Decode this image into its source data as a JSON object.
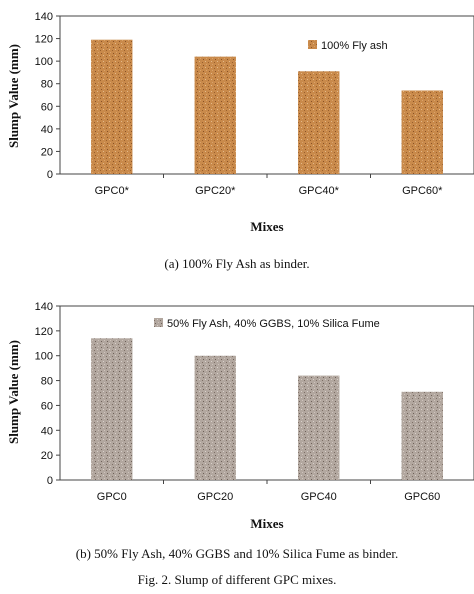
{
  "chart_data": [
    {
      "type": "bar",
      "categories": [
        "GPC0*",
        "GPC20*",
        "GPC40*",
        "GPC60*"
      ],
      "series": [
        {
          "name": "100% Fly ash",
          "values": [
            119,
            104,
            91,
            74
          ],
          "color": "#c98a4b"
        }
      ],
      "xlabel": "Mixes",
      "ylabel": "Slump Value (mm)",
      "ylim": [
        0,
        140
      ],
      "yticks": [
        0,
        20,
        40,
        60,
        80,
        100,
        120,
        140
      ],
      "legend": "top-right",
      "grid": false,
      "caption": "(a) 100% Fly Ash as binder."
    },
    {
      "type": "bar",
      "categories": [
        "GPC0",
        "GPC20",
        "GPC40",
        "GPC60"
      ],
      "series": [
        {
          "name": "50% Fly Ash, 40% GGBS, 10% Silica Fume",
          "values": [
            114,
            100,
            84,
            71
          ],
          "color": "#b2a79f"
        }
      ],
      "xlabel": "Mixes",
      "ylabel": "Slump Value (mm)",
      "ylim": [
        0,
        140
      ],
      "yticks": [
        0,
        20,
        40,
        60,
        80,
        100,
        120,
        140
      ],
      "legend": "top-right",
      "grid": false,
      "caption": "(b) 50% Fly Ash, 40% GGBS and 10% Silica Fume as binder."
    }
  ],
  "figure_caption": "Fig. 2. Slump of different GPC mixes."
}
